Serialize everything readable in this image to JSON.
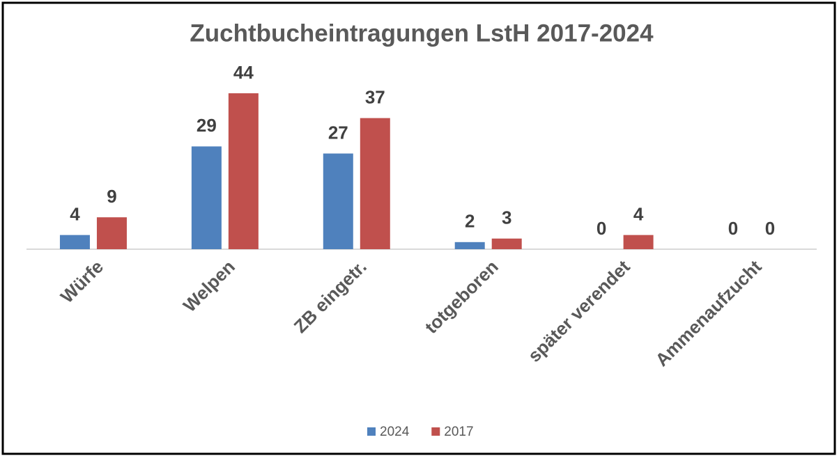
{
  "chart_data": {
    "type": "bar",
    "title": "Zuchtbucheintragungen LstH 2017-2024",
    "categories": [
      "Würfe",
      "Welpen",
      "ZB eingetr.",
      "totgeboren",
      "später verendet",
      "Ammenaufzucht"
    ],
    "series": [
      {
        "name": "2024",
        "color": "#4f81bd",
        "values": [
          4,
          29,
          27,
          2,
          0,
          0
        ]
      },
      {
        "name": "2017",
        "color": "#c0504d",
        "values": [
          9,
          44,
          37,
          3,
          4,
          0
        ]
      }
    ],
    "legend": "bottom",
    "data_labels": true
  }
}
